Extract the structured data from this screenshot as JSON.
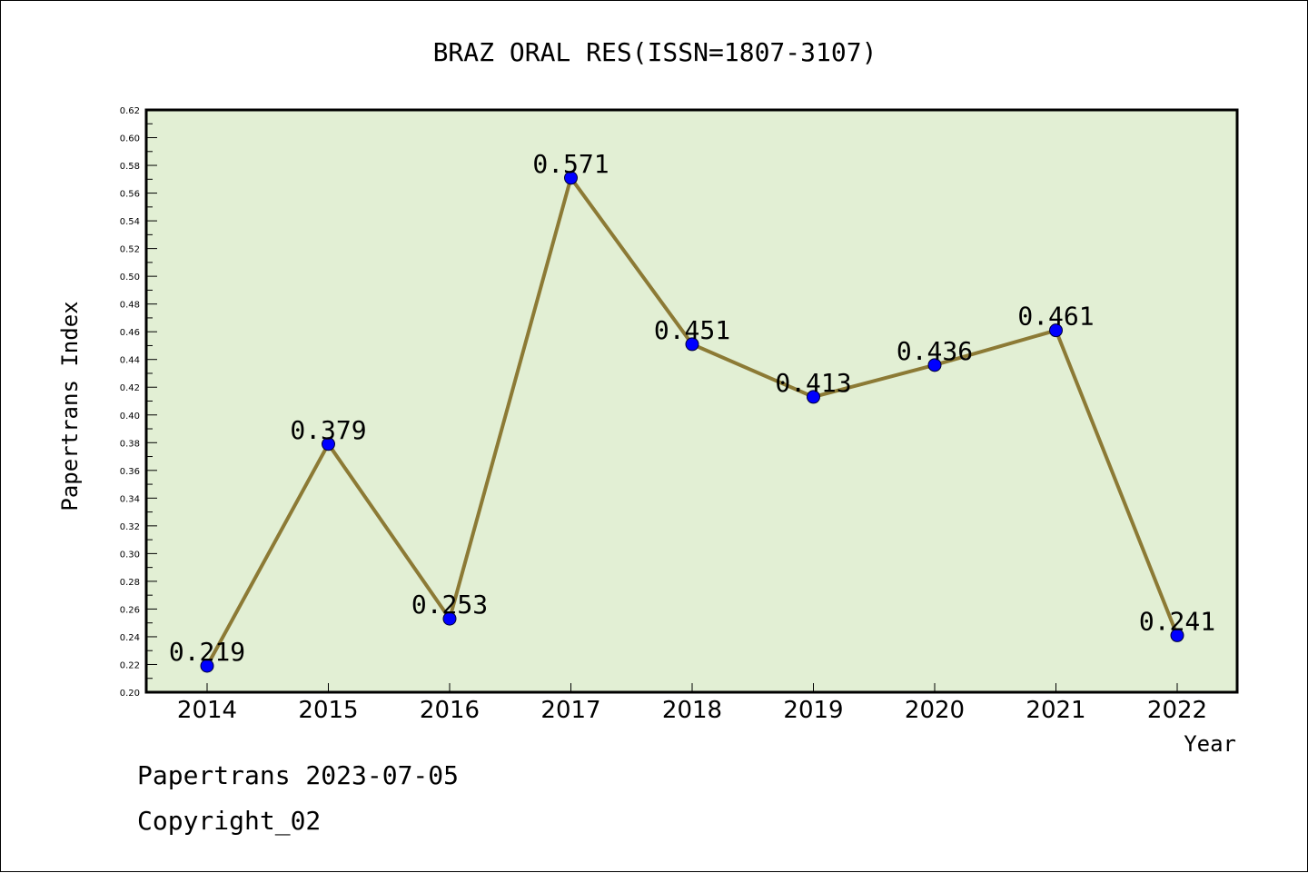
{
  "chart_data": {
    "type": "line",
    "title": "BRAZ ORAL RES(ISSN=1807-3107)",
    "xlabel": "Year",
    "ylabel": "Papertrans Index",
    "categories": [
      "2014",
      "2015",
      "2016",
      "2017",
      "2018",
      "2019",
      "2020",
      "2021",
      "2022"
    ],
    "series": [
      {
        "values": [
          0.219,
          0.379,
          0.253,
          0.571,
          0.451,
          0.413,
          0.436,
          0.461,
          0.241
        ]
      }
    ],
    "data_labels": [
      "0.219",
      "0.379",
      "0.253",
      "0.571",
      "0.451",
      "0.413",
      "0.436",
      "0.461",
      "0.241"
    ],
    "ylim": [
      0.2,
      0.62
    ],
    "yticks": [
      "0.20",
      "0.22",
      "0.24",
      "0.26",
      "0.28",
      "0.30",
      "0.32",
      "0.34",
      "0.36",
      "0.38",
      "0.40",
      "0.42",
      "0.44",
      "0.46",
      "0.48",
      "0.50",
      "0.52",
      "0.54",
      "0.56",
      "0.58",
      "0.60",
      "0.62"
    ],
    "grid": false,
    "colors": {
      "plot_background": "#e2efd4",
      "line": "#8c7a35",
      "marker": "#0000ff"
    }
  },
  "footer": {
    "date_line": "Papertrans 2023-07-05",
    "copyright": "Copyright_02"
  }
}
